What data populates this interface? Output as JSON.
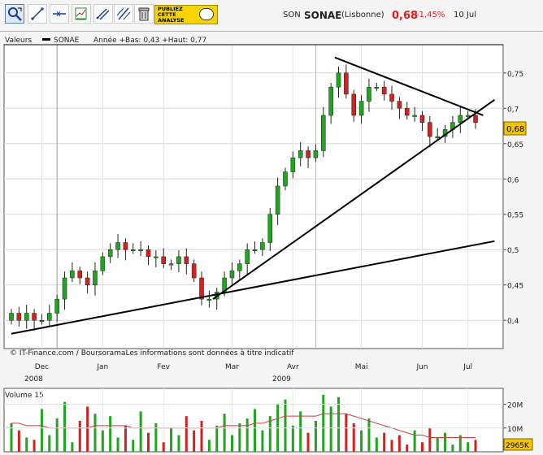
{
  "toolbar": {
    "tools": [
      "zoom-icon",
      "draw-line-icon",
      "horizontal-line-icon",
      "indicator-icon",
      "trend-channel-icon",
      "parallel-lines-icon",
      "trash-icon"
    ],
    "promo_text": "PUBLIEZ\nCETTE\nANALYSE"
  },
  "header": {
    "ticker": "SON",
    "name": "SONAE",
    "exchange": "(Lisbonne)",
    "price": "0,68",
    "change": "-1,45%",
    "date": "10 Jul"
  },
  "colors": {
    "up": "#1fa51f",
    "down": "#d42020",
    "price_tag": "#f5c400",
    "average": "#d43c3c"
  },
  "price_panel": {
    "legend_prefix": "Valeurs",
    "legend_series": "SONAE",
    "legend_info": "Année +Bas: 0,43 +Haut: 0,77",
    "y_ticks": [
      "0,4",
      "0,45",
      "0,5",
      "0,55",
      "0,6",
      "0,65",
      "0,7",
      "0,75"
    ],
    "price_tag": "0,68",
    "footer_note": "© IT-Finance.com / BoursoramaLes informations sont données à titre indicatif"
  },
  "x_axis": {
    "months": [
      "Dec",
      "Jan",
      "Fev",
      "Mar",
      "Avr",
      "Mai",
      "Jun",
      "Jul"
    ],
    "years": [
      "2008",
      "2009"
    ]
  },
  "volume_panel": {
    "label": "Volume 15",
    "y_ticks": [
      "20M",
      "10M"
    ],
    "current_tag": "2965K"
  },
  "chart_data": [
    {
      "type": "candlestick",
      "series": [
        {
          "name": "SONAE",
          "unit": "EUR",
          "values": [
            0.41,
            0.4,
            0.41,
            0.4,
            0.4,
            0.41,
            0.43,
            0.46,
            0.47,
            0.46,
            0.45,
            0.47,
            0.49,
            0.5,
            0.51,
            0.5,
            0.5,
            0.5,
            0.49,
            0.49,
            0.48,
            0.48,
            0.49,
            0.48,
            0.46,
            0.43,
            0.43,
            0.44,
            0.46,
            0.47,
            0.48,
            0.5,
            0.5,
            0.51,
            0.55,
            0.59,
            0.61,
            0.63,
            0.64,
            0.63,
            0.64,
            0.69,
            0.73,
            0.75,
            0.72,
            0.69,
            0.71,
            0.73,
            0.73,
            0.72,
            0.71,
            0.7,
            0.69,
            0.69,
            0.68,
            0.66,
            0.66,
            0.67,
            0.68,
            0.69,
            0.69,
            0.68
          ]
        }
      ],
      "trendlines": [
        {
          "from": [
            "late Nov 2008",
            0.38
          ],
          "to": [
            "early Jul 2009",
            0.51
          ]
        },
        {
          "from": [
            "mid Feb 2009",
            0.43
          ],
          "to": [
            "early Jul 2009",
            0.71
          ]
        },
        {
          "from": [
            "Apr 2009",
            0.77
          ],
          "to": [
            "early Jul 2009",
            0.69
          ]
        }
      ],
      "ylim": [
        0.36,
        0.79
      ],
      "last": 0.68,
      "grid": true
    },
    {
      "type": "bar",
      "series": [
        {
          "name": "Volume",
          "values": [
            12,
            9,
            6,
            5,
            18,
            7,
            14,
            21,
            4,
            13,
            19,
            16,
            9,
            15,
            6,
            11,
            5,
            17,
            8,
            12,
            4,
            10,
            7,
            15,
            9,
            13,
            5,
            11,
            16,
            7,
            12,
            14,
            18,
            9,
            15,
            20,
            22,
            11,
            17,
            8,
            13,
            24,
            19,
            23,
            16,
            12,
            9,
            14,
            6,
            8,
            5,
            7,
            3,
            9,
            4,
            10,
            6,
            8,
            3,
            7,
            4,
            5
          ]
        },
        {
          "name": "Volume 15",
          "type": "line",
          "values": [
            12,
            12,
            11,
            11,
            11,
            10,
            10,
            10,
            10,
            10,
            10,
            11,
            11,
            11,
            11,
            11,
            10,
            10,
            10,
            10,
            10,
            10,
            10,
            10,
            10,
            10,
            10,
            10,
            11,
            11,
            11,
            11,
            12,
            12,
            13,
            14,
            15,
            15,
            15,
            15,
            15,
            16,
            16,
            16,
            16,
            15,
            14,
            13,
            12,
            11,
            10,
            9,
            8,
            7,
            7,
            6,
            6,
            6,
            6,
            6,
            6,
            6
          ]
        }
      ],
      "unit": "M",
      "ylim": [
        0,
        26
      ]
    }
  ]
}
